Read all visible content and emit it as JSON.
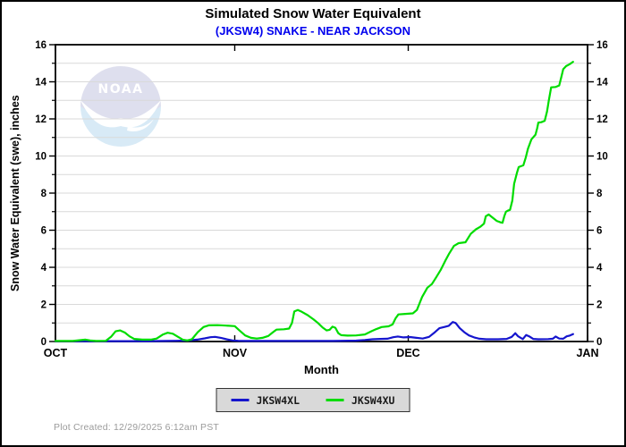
{
  "header": {
    "title": "Simulated Snow Water Equivalent",
    "subtitle": "(JKSW4) SNAKE - NEAR JACKSON"
  },
  "watermark": {
    "name": "NOAA logo",
    "text": "NOAA"
  },
  "chart_data": {
    "type": "line",
    "title": "Simulated Snow Water Equivalent",
    "subtitle": "(JKSW4) SNAKE - NEAR JACKSON",
    "xlabel": "Month",
    "ylabel": "Snow Water Equivalent (swe),  inches",
    "x_unit": "days from Oct 1",
    "xlim": [
      0,
      92
    ],
    "ylim": [
      0,
      16
    ],
    "x_ticks": [
      {
        "day": 0,
        "label": "OCT"
      },
      {
        "day": 31,
        "label": "NOV"
      },
      {
        "day": 61,
        "label": "DEC"
      },
      {
        "day": 92,
        "label": "JAN"
      }
    ],
    "y_major_ticks": [
      0,
      2,
      4,
      6,
      8,
      10,
      12,
      14,
      16
    ],
    "y_minor_ticks": [
      1,
      3,
      5,
      7,
      9,
      11,
      13,
      15
    ],
    "grid": {
      "horizontal_every": 1,
      "color": "#d9d9d9",
      "vertical": false
    },
    "legend_position": "bottom-center",
    "labels_both_sides": true,
    "series": [
      {
        "name": "JKSW4XL",
        "color": "#1515cd",
        "points": [
          [
            0,
            0.02
          ],
          [
            16,
            0.02
          ],
          [
            19,
            0.03
          ],
          [
            21,
            0.04
          ],
          [
            23,
            0.06
          ],
          [
            24.5,
            0.1
          ],
          [
            25.8,
            0.17
          ],
          [
            26.8,
            0.23
          ],
          [
            27.6,
            0.25
          ],
          [
            28.6,
            0.2
          ],
          [
            29.6,
            0.12
          ],
          [
            30.6,
            0.06
          ],
          [
            31.6,
            0.04
          ],
          [
            33,
            0.03
          ],
          [
            48,
            0.03
          ],
          [
            52,
            0.05
          ],
          [
            53.5,
            0.08
          ],
          [
            54.8,
            0.12
          ],
          [
            56.2,
            0.14
          ],
          [
            57.4,
            0.15
          ],
          [
            58.4,
            0.23
          ],
          [
            59.2,
            0.27
          ],
          [
            60.2,
            0.22
          ],
          [
            61.3,
            0.24
          ],
          [
            62.4,
            0.2
          ],
          [
            63.5,
            0.16
          ],
          [
            64.6,
            0.25
          ],
          [
            65.6,
            0.5
          ],
          [
            66.4,
            0.72
          ],
          [
            67.2,
            0.78
          ],
          [
            68,
            0.85
          ],
          [
            68.7,
            1.05
          ],
          [
            69.2,
            1.0
          ],
          [
            69.9,
            0.72
          ],
          [
            70.7,
            0.5
          ],
          [
            71.5,
            0.33
          ],
          [
            72.4,
            0.22
          ],
          [
            73.3,
            0.15
          ],
          [
            74.5,
            0.12
          ],
          [
            76.5,
            0.12
          ],
          [
            78,
            0.14
          ],
          [
            78.9,
            0.25
          ],
          [
            79.5,
            0.45
          ],
          [
            80,
            0.28
          ],
          [
            80.8,
            0.13
          ],
          [
            81.4,
            0.35
          ],
          [
            81.9,
            0.28
          ],
          [
            82.6,
            0.14
          ],
          [
            83.5,
            0.12
          ],
          [
            85.2,
            0.13
          ],
          [
            86,
            0.15
          ],
          [
            86.5,
            0.27
          ],
          [
            87.1,
            0.16
          ],
          [
            87.8,
            0.15
          ],
          [
            88.4,
            0.28
          ],
          [
            88.9,
            0.32
          ],
          [
            89.5,
            0.4
          ]
        ]
      },
      {
        "name": "JKSW4XU",
        "color": "#00dc00",
        "points": [
          [
            0,
            0.03
          ],
          [
            3,
            0.03
          ],
          [
            4.3,
            0.07
          ],
          [
            5.2,
            0.1
          ],
          [
            6,
            0.06
          ],
          [
            7,
            0.03
          ],
          [
            8.7,
            0.04
          ],
          [
            9.6,
            0.25
          ],
          [
            10.4,
            0.55
          ],
          [
            11.2,
            0.6
          ],
          [
            12,
            0.48
          ],
          [
            12.8,
            0.28
          ],
          [
            13.6,
            0.14
          ],
          [
            15,
            0.1
          ],
          [
            16.5,
            0.1
          ],
          [
            17.5,
            0.16
          ],
          [
            18.6,
            0.38
          ],
          [
            19.4,
            0.47
          ],
          [
            20.3,
            0.42
          ],
          [
            21.2,
            0.25
          ],
          [
            22,
            0.1
          ],
          [
            22.8,
            0.06
          ],
          [
            23.6,
            0.12
          ],
          [
            24.6,
            0.5
          ],
          [
            25.6,
            0.78
          ],
          [
            26.5,
            0.87
          ],
          [
            28,
            0.88
          ],
          [
            29.5,
            0.86
          ],
          [
            31,
            0.83
          ],
          [
            31.8,
            0.6
          ],
          [
            32.8,
            0.33
          ],
          [
            33.8,
            0.2
          ],
          [
            34.8,
            0.16
          ],
          [
            35.8,
            0.2
          ],
          [
            36.8,
            0.3
          ],
          [
            37.6,
            0.5
          ],
          [
            38.2,
            0.64
          ],
          [
            39.5,
            0.66
          ],
          [
            40.4,
            0.7
          ],
          [
            40.9,
            1.0
          ],
          [
            41.3,
            1.62
          ],
          [
            41.9,
            1.7
          ],
          [
            42.6,
            1.6
          ],
          [
            43.6,
            1.42
          ],
          [
            44.6,
            1.2
          ],
          [
            45.4,
            1.0
          ],
          [
            46.2,
            0.75
          ],
          [
            46.9,
            0.6
          ],
          [
            47.4,
            0.63
          ],
          [
            47.9,
            0.8
          ],
          [
            48.4,
            0.74
          ],
          [
            48.9,
            0.45
          ],
          [
            49.4,
            0.34
          ],
          [
            50.5,
            0.32
          ],
          [
            52,
            0.33
          ],
          [
            53.5,
            0.38
          ],
          [
            54.6,
            0.55
          ],
          [
            55.4,
            0.66
          ],
          [
            56.4,
            0.78
          ],
          [
            57.6,
            0.82
          ],
          [
            58.3,
            0.92
          ],
          [
            58.8,
            1.25
          ],
          [
            59.3,
            1.46
          ],
          [
            60.5,
            1.49
          ],
          [
            61.8,
            1.52
          ],
          [
            62.5,
            1.7
          ],
          [
            63.4,
            2.4
          ],
          [
            64.3,
            2.9
          ],
          [
            65.1,
            3.1
          ],
          [
            65.8,
            3.45
          ],
          [
            66.6,
            3.85
          ],
          [
            67.4,
            4.35
          ],
          [
            68.1,
            4.75
          ],
          [
            68.9,
            5.15
          ],
          [
            69.7,
            5.3
          ],
          [
            70.9,
            5.35
          ],
          [
            71.8,
            5.8
          ],
          [
            72.7,
            6.05
          ],
          [
            73.5,
            6.2
          ],
          [
            74.1,
            6.35
          ],
          [
            74.4,
            6.75
          ],
          [
            74.9,
            6.85
          ],
          [
            75.5,
            6.7
          ],
          [
            76.3,
            6.5
          ],
          [
            77,
            6.42
          ],
          [
            77.3,
            6.4
          ],
          [
            77.6,
            6.75
          ],
          [
            77.9,
            7.0
          ],
          [
            78.2,
            7.05
          ],
          [
            78.6,
            7.1
          ],
          [
            79,
            7.6
          ],
          [
            79.3,
            8.5
          ],
          [
            79.8,
            9.1
          ],
          [
            80.1,
            9.4
          ],
          [
            80.9,
            9.5
          ],
          [
            81.3,
            9.9
          ],
          [
            81.7,
            10.4
          ],
          [
            82.3,
            10.9
          ],
          [
            83,
            11.15
          ],
          [
            83.3,
            11.5
          ],
          [
            83.5,
            11.8
          ],
          [
            84,
            11.82
          ],
          [
            84.6,
            11.9
          ],
          [
            85,
            12.4
          ],
          [
            85.3,
            13.0
          ],
          [
            85.7,
            13.7
          ],
          [
            86.5,
            13.72
          ],
          [
            87.1,
            13.8
          ],
          [
            87.5,
            14.3
          ],
          [
            87.8,
            14.68
          ],
          [
            88.3,
            14.85
          ],
          [
            88.9,
            14.95
          ],
          [
            89.5,
            15.08
          ]
        ]
      }
    ]
  },
  "legend": {
    "items": [
      {
        "label": "JKSW4XL",
        "color": "#1515cd"
      },
      {
        "label": "JKSW4XU",
        "color": "#00dc00"
      }
    ]
  },
  "footer": {
    "created_text": "Plot Created: 12/29/2025 6:12am PST"
  },
  "colors": {
    "subtitle": "#0000ee",
    "grid": "#d9d9d9",
    "legend_bg": "#d9d9d9",
    "footer_text": "#9b9b9b"
  }
}
